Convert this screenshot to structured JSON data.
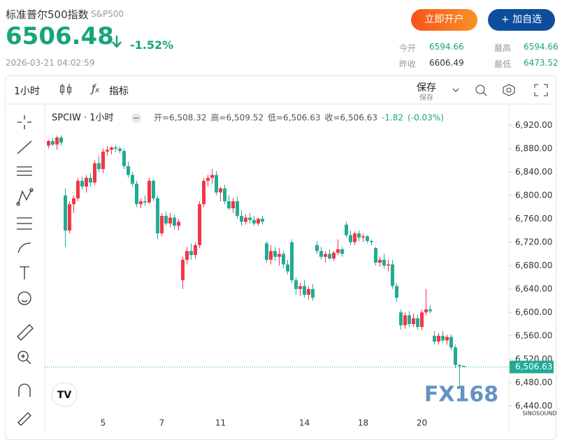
{
  "header": {
    "title": "标准普尔500指数",
    "symbol": "S&P500",
    "price": "6506.48",
    "change": "-1.52%",
    "datetime": "2026-03-21 04:02:59",
    "buttons": [
      "立即开户",
      "+ 加自选"
    ],
    "stats": [
      {
        "label": "今开",
        "value": "6594.66"
      },
      {
        "label": "最高",
        "value": "6594.66"
      },
      {
        "label": "昨收",
        "value": "6606.49"
      },
      {
        "label": "最低",
        "value": "6473.52"
      }
    ]
  },
  "toolbar": {
    "interval": "1小时",
    "indicators": "指标",
    "save": "保存",
    "save_sub": "保存"
  },
  "chart_data": {
    "type": "candlestick",
    "title": "SPCIW · 1小时",
    "legend": [
      "开=6,508.32",
      "高=6,509.52",
      "低=6,506.63",
      "收=6,506.63",
      "-1.82",
      "(-0.03%)"
    ],
    "watermark": "FX168",
    "watermark_sub": "SINOSOUND",
    "up_color": "#f23645",
    "down_color": "#22ab94",
    "grid": false,
    "open": [
      6885,
      6893,
      6887,
      6899,
      6800,
      6740,
      6785,
      6795,
      6825,
      6815,
      6830,
      6822,
      6855,
      6845,
      6875,
      6878,
      6882,
      6880,
      6876,
      6850,
      6835,
      6820,
      6785,
      6790,
      6788,
      6825,
      6795,
      6735,
      6765,
      6752,
      6762,
      6748,
      6655,
      6690,
      6705,
      6698,
      6715,
      6785,
      6825,
      6830,
      6835,
      6805,
      6812,
      6790,
      6778,
      6790,
      6765,
      6755,
      6762,
      6758,
      6752,
      6760,
      6718,
      6690,
      6705,
      6695,
      6700,
      6682,
      6720,
      6655,
      6640,
      6645,
      6630,
      6640,
      6715,
      6705,
      6695,
      6700,
      6692,
      6702,
      6708,
      6750,
      6732,
      6720,
      6735,
      6728,
      6730,
      6722,
      6710,
      6685,
      6690,
      6680,
      6682,
      6645,
      6600,
      6578,
      6595,
      6580,
      6590,
      6575,
      6600,
      6605,
      6560,
      6550,
      6560,
      6552,
      6558,
      6540,
      6510,
      6508.32
    ],
    "high": [
      6895,
      6898,
      6902,
      6903,
      6812,
      6790,
      6800,
      6830,
      6832,
      6835,
      6838,
      6860,
      6868,
      6880,
      6885,
      6884,
      6886,
      6884,
      6880,
      6858,
      6840,
      6825,
      6795,
      6800,
      6830,
      6828,
      6800,
      6770,
      6772,
      6770,
      6768,
      6760,
      6695,
      6712,
      6718,
      6720,
      6790,
      6830,
      6835,
      6845,
      6842,
      6815,
      6818,
      6800,
      6795,
      6798,
      6775,
      6768,
      6770,
      6765,
      6762,
      6765,
      6722,
      6715,
      6712,
      6710,
      6705,
      6690,
      6725,
      6660,
      6650,
      6655,
      6645,
      6648,
      6722,
      6712,
      6705,
      6708,
      6705,
      6725,
      6712,
      6755,
      6740,
      6738,
      6740,
      6735,
      6732,
      6725,
      6712,
      6695,
      6700,
      6690,
      6690,
      6650,
      6605,
      6600,
      6602,
      6598,
      6596,
      6605,
      6640,
      6612,
      6568,
      6565,
      6568,
      6562,
      6562,
      6545,
      6512,
      6509.52
    ],
    "low": [
      6880,
      6884,
      6878,
      6885,
      6712,
      6735,
      6770,
      6790,
      6810,
      6805,
      6815,
      6818,
      6840,
      6838,
      6868,
      6870,
      6874,
      6872,
      6845,
      6830,
      6815,
      6780,
      6778,
      6782,
      6785,
      6790,
      6725,
      6730,
      6748,
      6745,
      6742,
      6740,
      6640,
      6682,
      6690,
      6692,
      6710,
      6780,
      6815,
      6820,
      6800,
      6790,
      6785,
      6775,
      6770,
      6760,
      6748,
      6750,
      6752,
      6748,
      6748,
      6750,
      6685,
      6682,
      6688,
      6680,
      6675,
      6665,
      6650,
      6630,
      6628,
      6625,
      6622,
      6620,
      6700,
      6690,
      6685,
      6690,
      6688,
      6698,
      6695,
      6728,
      6715,
      6715,
      6722,
      6720,
      6718,
      6715,
      6680,
      6678,
      6675,
      6670,
      6640,
      6618,
      6570,
      6572,
      6575,
      6575,
      6570,
      6570,
      6595,
      6598,
      6545,
      6545,
      6548,
      6545,
      6535,
      6505,
      6470,
      6506.63
    ],
    "close": [
      6893,
      6887,
      6899,
      6890,
      6740,
      6785,
      6795,
      6825,
      6815,
      6830,
      6822,
      6855,
      6845,
      6875,
      6878,
      6882,
      6880,
      6876,
      6850,
      6835,
      6820,
      6785,
      6790,
      6788,
      6825,
      6795,
      6735,
      6765,
      6752,
      6762,
      6748,
      6755,
      6690,
      6705,
      6698,
      6715,
      6785,
      6825,
      6830,
      6835,
      6805,
      6812,
      6790,
      6778,
      6790,
      6765,
      6755,
      6762,
      6758,
      6752,
      6760,
      6755,
      6690,
      6705,
      6695,
      6700,
      6682,
      6670,
      6655,
      6640,
      6645,
      6630,
      6640,
      6625,
      6705,
      6695,
      6700,
      6692,
      6702,
      6708,
      6700,
      6732,
      6720,
      6735,
      6728,
      6730,
      6722,
      6720,
      6685,
      6690,
      6680,
      6682,
      6645,
      6625,
      6578,
      6595,
      6580,
      6590,
      6575,
      6600,
      6605,
      6602,
      6550,
      6560,
      6552,
      6558,
      6540,
      6510,
      6508,
      6506.63
    ],
    "xticks": [
      {
        "value": 13,
        "label": "5"
      },
      {
        "value": 27,
        "label": "7"
      },
      {
        "value": 41,
        "label": "11"
      },
      {
        "value": 61,
        "label": "14"
      },
      {
        "value": 75,
        "label": "18"
      },
      {
        "value": 89,
        "label": "20"
      }
    ],
    "ylim": [
      6420,
      6955
    ],
    "yticks": [
      {
        "value": 6440,
        "label": "6,440.00"
      },
      {
        "value": 6480,
        "label": "6,480.00"
      },
      {
        "value": 6520,
        "label": "6,520.00"
      },
      {
        "value": 6560,
        "label": "6,560.00"
      },
      {
        "value": 6600,
        "label": "6,600.00"
      },
      {
        "value": 6640,
        "label": "6,640.00"
      },
      {
        "value": 6680,
        "label": "6,680.00"
      },
      {
        "value": 6720,
        "label": "6,720.00"
      },
      {
        "value": 6760,
        "label": "6,760.00"
      },
      {
        "value": 6800,
        "label": "6,800.00"
      },
      {
        "value": 6840,
        "label": "6,840.00"
      },
      {
        "value": 6880,
        "label": "6,880.00"
      },
      {
        "value": 6920,
        "label": "6,920.00"
      }
    ],
    "last_price": {
      "value": 6506.63,
      "label": "6,506.63"
    }
  }
}
